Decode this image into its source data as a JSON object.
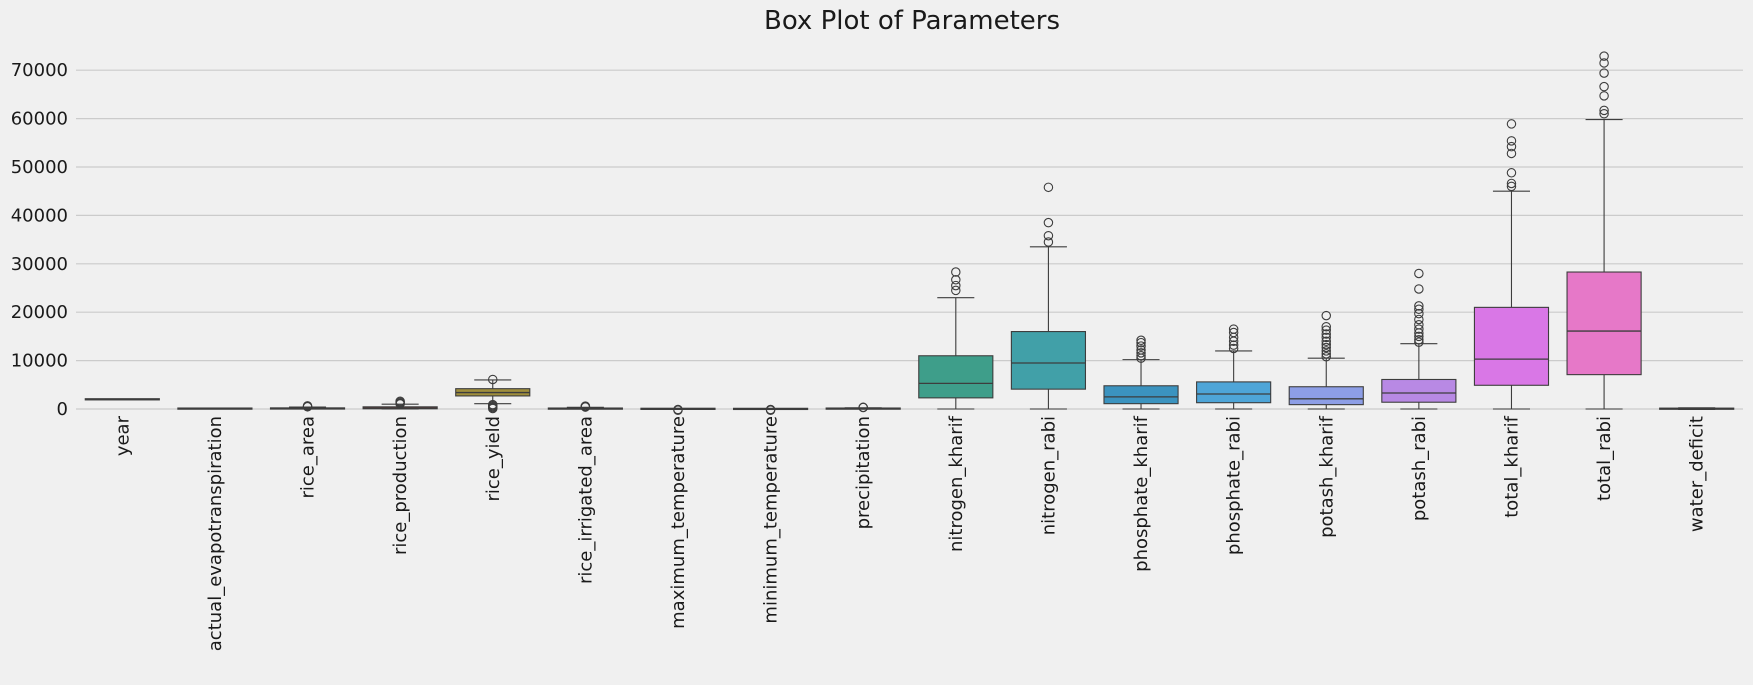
{
  "chart_data": {
    "type": "box",
    "title": "Box Plot of Parameters",
    "xlabel": "",
    "ylabel": "",
    "ylim": [
      -1500,
      75500
    ],
    "yticks": [
      0,
      10000,
      20000,
      30000,
      40000,
      50000,
      60000,
      70000
    ],
    "ytick_labels": [
      "0",
      "10000",
      "20000",
      "30000",
      "40000",
      "50000",
      "60000",
      "70000"
    ],
    "grid": "horizontal",
    "categories": [
      "year",
      "actual_evapotranspiration",
      "rice_area",
      "rice_production",
      "rice_yield",
      "rice_irrigated_area",
      "maximum_temperature",
      "minimum_temperature",
      "precipitation",
      "nitrogen_kharif",
      "nitrogen_rabi",
      "phosphate_kharif",
      "phosphate_rabi",
      "potash_kharif",
      "potash_rabi",
      "total_kharif",
      "total_rabi",
      "water_deficit"
    ],
    "colors": [
      "#3274a1",
      "#e1812c",
      "#3a923a",
      "#c03d3e",
      "#9f8e3c",
      "#8b5b3e",
      "#ce6ab8",
      "#6a6a6a",
      "#8c8c3b",
      "#3e9e8a",
      "#41a0a8",
      "#3b93bf",
      "#4ea5d8",
      "#8d9ee6",
      "#b889e4",
      "#d977e6",
      "#e678c8",
      "#e87aa6"
    ],
    "boxes": [
      {
        "name": "year",
        "whislo": 1990,
        "q1": 1995,
        "med": 2003,
        "q3": 2010,
        "whishi": 2017,
        "fliers": []
      },
      {
        "name": "actual_evapotranspiration",
        "whislo": 20,
        "q1": 60,
        "med": 80,
        "q3": 100,
        "whishi": 140,
        "fliers": []
      },
      {
        "name": "rice_area",
        "whislo": 0,
        "q1": 20,
        "med": 80,
        "q3": 200,
        "whishi": 400,
        "fliers": [
          450,
          550,
          650
        ]
      },
      {
        "name": "rice_production",
        "whislo": 0,
        "q1": 50,
        "med": 200,
        "q3": 450,
        "whishi": 1000,
        "fliers": [
          1050,
          1200,
          1400,
          1600
        ]
      },
      {
        "name": "rice_yield",
        "whislo": 1100,
        "q1": 2700,
        "med": 3400,
        "q3": 4200,
        "whishi": 6000,
        "fliers": [
          6100,
          100,
          300,
          500,
          700,
          900
        ]
      },
      {
        "name": "rice_irrigated_area",
        "whislo": 0,
        "q1": 10,
        "med": 50,
        "q3": 150,
        "whishi": 350,
        "fliers": [
          400,
          500,
          600
        ]
      },
      {
        "name": "maximum_temperature",
        "whislo": 27,
        "q1": 30,
        "med": 32,
        "q3": 34,
        "whishi": 38,
        "fliers": [
          -100,
          -250
        ]
      },
      {
        "name": "minimum_temperature",
        "whislo": 15,
        "q1": 18,
        "med": 20,
        "q3": 22,
        "whishi": 26,
        "fliers": [
          -100,
          -250
        ]
      },
      {
        "name": "precipitation",
        "whislo": 0,
        "q1": 40,
        "med": 80,
        "q3": 120,
        "whishi": 250,
        "fliers": [
          300,
          350
        ]
      },
      {
        "name": "nitrogen_kharif",
        "whislo": 0,
        "q1": 2300,
        "med": 5300,
        "q3": 11000,
        "whishi": 23000,
        "fliers": [
          24500,
          25500,
          26700,
          28300
        ]
      },
      {
        "name": "nitrogen_rabi",
        "whislo": 0,
        "q1": 4100,
        "med": 9500,
        "q3": 16000,
        "whishi": 33500,
        "fliers": [
          34500,
          35800,
          38500,
          45800
        ]
      },
      {
        "name": "phosphate_kharif",
        "whislo": 0,
        "q1": 1100,
        "med": 2500,
        "q3": 4800,
        "whishi": 10200,
        "fliers": [
          10500,
          11000,
          11600,
          12200,
          13000,
          13700,
          14200
        ]
      },
      {
        "name": "phosphate_rabi",
        "whislo": 0,
        "q1": 1300,
        "med": 3100,
        "q3": 5600,
        "whishi": 12000,
        "fliers": [
          12500,
          13200,
          14000,
          14800,
          15800,
          16500
        ]
      },
      {
        "name": "potash_kharif",
        "whislo": 0,
        "q1": 900,
        "med": 2100,
        "q3": 4600,
        "whishi": 10500,
        "fliers": [
          10800,
          11400,
          12000,
          12700,
          13300,
          14000,
          14800,
          15500,
          16300,
          17000,
          19300
        ]
      },
      {
        "name": "potash_rabi",
        "whislo": 0,
        "q1": 1400,
        "med": 3300,
        "q3": 6100,
        "whishi": 13500,
        "fliers": [
          13800,
          14300,
          15000,
          15700,
          16500,
          17400,
          18500,
          19700,
          20600,
          21300,
          24800,
          28000
        ]
      },
      {
        "name": "total_kharif",
        "whislo": 0,
        "q1": 4900,
        "med": 10300,
        "q3": 21000,
        "whishi": 45000,
        "fliers": [
          46000,
          46600,
          48800,
          52800,
          54200,
          55400,
          58900
        ]
      },
      {
        "name": "total_rabi",
        "whislo": 0,
        "q1": 7100,
        "med": 16100,
        "q3": 28300,
        "whishi": 59800,
        "fliers": [
          61000,
          61700,
          64700,
          66600,
          69400,
          71500,
          72900
        ]
      },
      {
        "name": "water_deficit",
        "whislo": -100,
        "q1": 0,
        "med": 40,
        "q3": 120,
        "whishi": 250,
        "fliers": []
      }
    ]
  }
}
